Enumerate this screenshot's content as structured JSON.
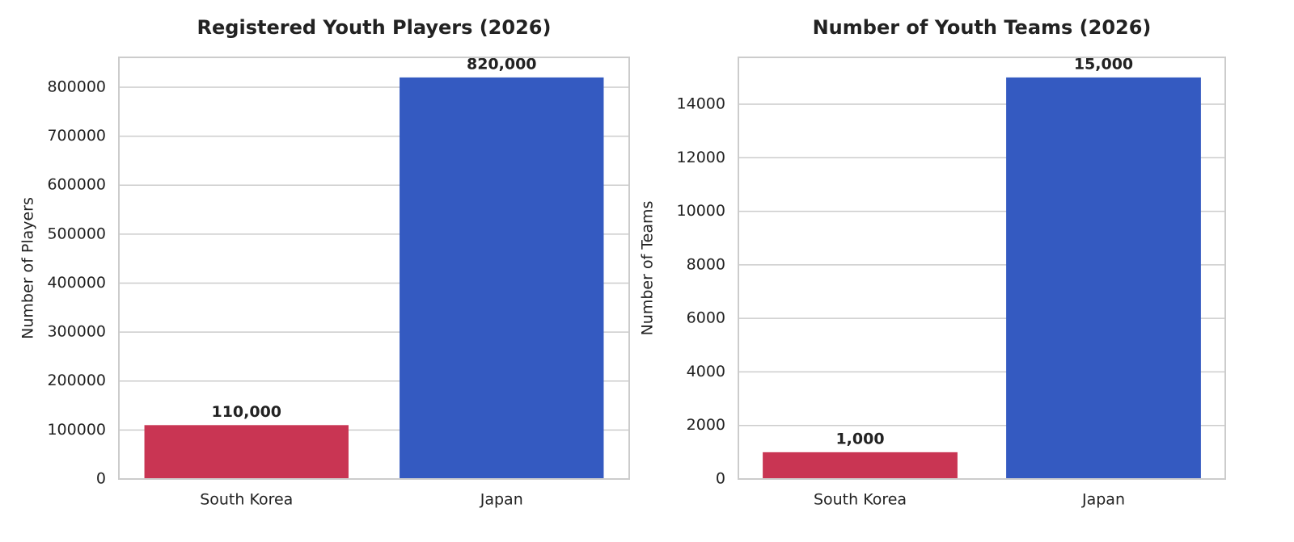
{
  "chart_data": [
    {
      "type": "bar",
      "title": "Registered Youth Players (2026)",
      "ylabel": "Number of Players",
      "categories": [
        "South Korea",
        "Japan"
      ],
      "values": [
        110000,
        820000
      ],
      "value_labels": [
        "110,000",
        "820,000"
      ],
      "colors": [
        "#c93553",
        "#345ac1"
      ],
      "ylim": [
        0,
        861000
      ],
      "yticks": [
        0,
        100000,
        200000,
        300000,
        400000,
        500000,
        600000,
        700000,
        800000
      ],
      "grid": true
    },
    {
      "type": "bar",
      "title": "Number of Youth Teams (2026)",
      "ylabel": "Number of Teams",
      "categories": [
        "South Korea",
        "Japan"
      ],
      "values": [
        1000,
        15000
      ],
      "value_labels": [
        "1,000",
        "15,000"
      ],
      "colors": [
        "#c93553",
        "#345ac1"
      ],
      "ylim": [
        0,
        15750
      ],
      "yticks": [
        0,
        2000,
        4000,
        6000,
        8000,
        10000,
        12000,
        14000
      ],
      "grid": true
    }
  ]
}
